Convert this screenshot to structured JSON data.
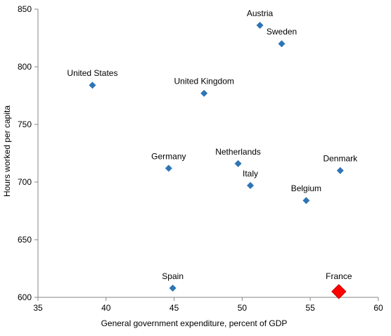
{
  "chart_data": {
    "type": "scatter",
    "title": "",
    "xlabel": "General government expenditure, percent of GDP",
    "ylabel": "Hours worked per capita",
    "xlim": [
      35,
      60
    ],
    "ylim": [
      600,
      850
    ],
    "xticks": [
      35,
      40,
      45,
      50,
      55,
      60
    ],
    "yticks": [
      600,
      650,
      700,
      750,
      800,
      850
    ],
    "grid": false,
    "legend": "none",
    "colors": {
      "point": "#2e75b6",
      "highlight": "#ff0000",
      "highlight_border": "#c00000"
    },
    "points": [
      {
        "label": "Austria",
        "x": 51.3,
        "y": 836
      },
      {
        "label": "Sweden",
        "x": 52.9,
        "y": 820
      },
      {
        "label": "United States",
        "x": 39.0,
        "y": 784
      },
      {
        "label": "United Kingdom",
        "x": 47.2,
        "y": 777
      },
      {
        "label": "Germany",
        "x": 44.6,
        "y": 712
      },
      {
        "label": "Netherlands",
        "x": 49.7,
        "y": 716
      },
      {
        "label": "Italy",
        "x": 50.6,
        "y": 697
      },
      {
        "label": "Denmark",
        "x": 57.2,
        "y": 710
      },
      {
        "label": "Belgium",
        "x": 54.7,
        "y": 684
      },
      {
        "label": "Spain",
        "x": 44.9,
        "y": 608
      },
      {
        "label": "France",
        "x": 57.1,
        "y": 605,
        "highlight": true
      }
    ]
  }
}
